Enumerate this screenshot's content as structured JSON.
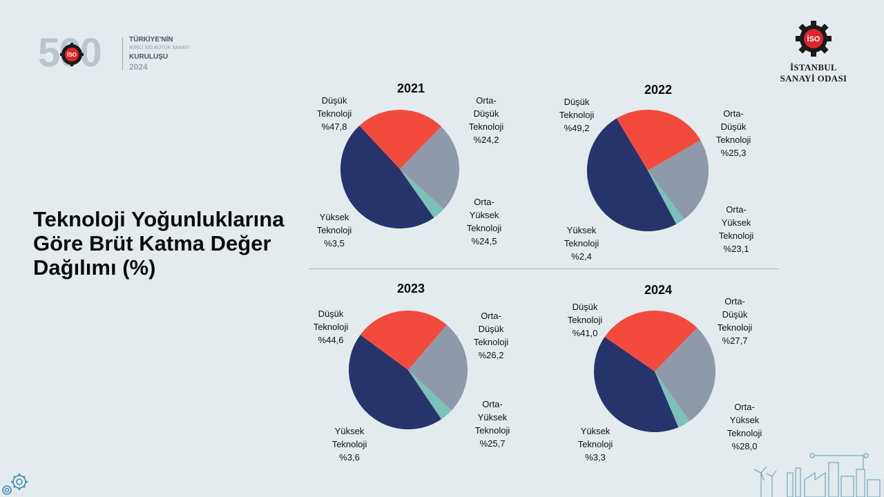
{
  "header": {
    "logo500": {
      "number": "500",
      "badge_text": "İSO",
      "line1": "TÜRKİYE'NİN",
      "line2": "İKİNCİ 500 BÜYÜK SANAYİ",
      "line3": "KURULUŞU",
      "line4": "2024"
    },
    "iso_logo": {
      "badge_text": "İSO",
      "line1": "İSTANBUL",
      "line2": "SANAYİ ODASI"
    }
  },
  "title": "Teknoloji Yoğunluklarına Göre Brüt Katma Değer Dağılımı (%)",
  "colors": {
    "dusuk": "#27346b",
    "orta_dusuk": "#f24b3d",
    "orta_yuksek": "#8e9aaa",
    "yuksek": "#7cc1b9"
  },
  "chart_data": [
    {
      "type": "pie",
      "title": "2021",
      "categories": [
        "Düşük Teknoloji",
        "Orta-Düşük Teknoloji",
        "Orta-Yüksek Teknoloji",
        "Yüksek Teknoloji"
      ],
      "values": [
        47.8,
        24.2,
        24.5,
        3.5
      ],
      "labels": [
        [
          "Düşük",
          "Teknoloji",
          "%47,8"
        ],
        [
          "Orta-",
          "Düşük",
          "Teknoloji",
          "%24,2"
        ],
        [
          "Orta-",
          "Yüksek",
          "Teknoloji",
          "%24,5"
        ],
        [
          "Yüksek",
          "Teknoloji",
          "%3,5"
        ]
      ]
    },
    {
      "type": "pie",
      "title": "2022",
      "categories": [
        "Düşük Teknoloji",
        "Orta-Düşük Teknoloji",
        "Orta-Yüksek Teknoloji",
        "Yüksek Teknoloji"
      ],
      "values": [
        49.2,
        25.3,
        23.1,
        2.4
      ],
      "labels": [
        [
          "Düşük",
          "Teknoloji",
          "%49,2"
        ],
        [
          "Orta-",
          "Düşük",
          "Teknoloji",
          "%25,3"
        ],
        [
          "Orta-",
          "Yüksek",
          "Teknoloji",
          "%23,1"
        ],
        [
          "Yüksek",
          "Teknoloji",
          "%2,4"
        ]
      ]
    },
    {
      "type": "pie",
      "title": "2023",
      "categories": [
        "Düşük Teknoloji",
        "Orta-Düşük Teknoloji",
        "Orta-Yüksek Teknoloji",
        "Yüksek Teknoloji"
      ],
      "values": [
        44.6,
        26.2,
        25.7,
        3.6
      ],
      "labels": [
        [
          "Düşük",
          "Teknoloji",
          "%44,6"
        ],
        [
          "Orta-",
          "Düşük",
          "Teknoloji",
          "%26,2"
        ],
        [
          "Orta-",
          "Yüksek",
          "Teknoloji",
          "%25,7"
        ],
        [
          "Yüksek",
          "Teknoloji",
          "%3,6"
        ]
      ]
    },
    {
      "type": "pie",
      "title": "2024",
      "categories": [
        "Düşük Teknoloji",
        "Orta-Düşük Teknoloji",
        "Orta-Yüksek Teknoloji",
        "Yüksek Teknoloji"
      ],
      "values": [
        41.0,
        27.7,
        28.0,
        3.3
      ],
      "labels": [
        [
          "Düşük",
          "Teknoloji",
          "%41,0"
        ],
        [
          "Orta-",
          "Düşük",
          "Teknoloji",
          "%27,7"
        ],
        [
          "Orta-",
          "Yüksek",
          "Teknoloji",
          "%28,0"
        ],
        [
          "Yüksek",
          "Teknoloji",
          "%3,3"
        ]
      ]
    }
  ]
}
